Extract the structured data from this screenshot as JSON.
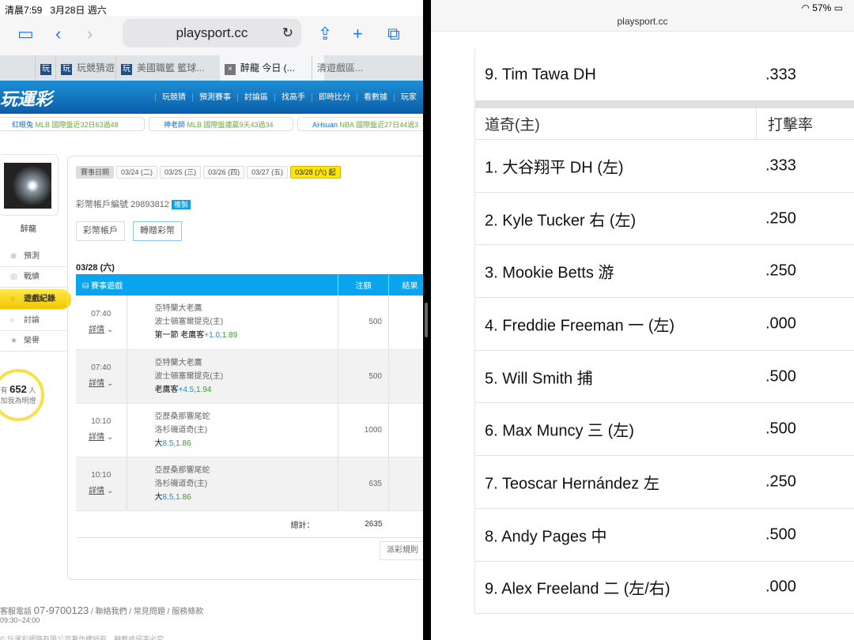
{
  "status_left": {
    "time": "清晨7:59",
    "date": "3月28日 週六"
  },
  "status_right": {
    "battery": "57%"
  },
  "browser": {
    "url": "playsport.cc",
    "tabs": [
      "玩競猜遊",
      "美國職籃 籃球...",
      "醉龍 今日 (...",
      "清遊戲區..."
    ]
  },
  "site": {
    "logo": "玩運彩",
    "nav": [
      "玩競猜",
      "預測賽事",
      "討論區",
      "找高手",
      "即時比分",
      "看數據",
      "玩家"
    ],
    "ticker": [
      {
        "user": "紅眼兔",
        "text": "MLB 國際盤近32日63過48"
      },
      {
        "user": "神老師",
        "text": "MLB 國際盤連贏9天43過34"
      },
      {
        "user": "AHsuan",
        "text": "NBA 國際盤近27日44過3"
      }
    ]
  },
  "sidebar": {
    "username": "醉龍",
    "menu": [
      "預測",
      "戰績",
      "遊戲紀錄",
      "討論",
      "榮譽"
    ],
    "fans_prefix": "有",
    "fans_count": "652",
    "fans_suffix": "人",
    "fans_caption": "加我為明燈"
  },
  "main": {
    "date_label": "賽事日期",
    "dates": [
      "03/24 (二)",
      "03/25 (三)",
      "03/26 (四)",
      "03/27 (五)",
      "03/28 (六) 起"
    ],
    "account_label": "彩幣帳戶編號 29893812",
    "copy": "複製",
    "btn_account": "彩幣帳戶",
    "btn_transfer": "轉贈彩幣",
    "day_title": "03/28 (六)",
    "columns": [
      "賽事遊戲",
      "注額",
      "結果"
    ],
    "detail": "詳情",
    "rows": [
      {
        "time": "07:40",
        "away": "亞特蘭大老鷹",
        "home": "波士頓塞爾提克(主)",
        "pick": "第一節 老鷹客",
        "line": "+1.0",
        "odds": ",1.89",
        "amount": "500"
      },
      {
        "time": "07:40",
        "away": "亞特蘭大老鷹",
        "home": "波士頓塞爾提克(主)",
        "pick": "老鷹客",
        "line": "+4.5",
        "odds": ",1.94",
        "amount": "500"
      },
      {
        "time": "10:10",
        "away": "亞歷桑那響尾蛇",
        "home": "洛杉磯道奇(主)",
        "pick": "大",
        "line": "8.5",
        "odds": ",1.86",
        "amount": "1000"
      },
      {
        "time": "10:10",
        "away": "亞歷桑那響尾蛇",
        "home": "洛杉磯道奇(主)",
        "pick": "大",
        "line": "8.5",
        "odds": ",1.86",
        "amount": "635"
      }
    ],
    "total_label": "總計：",
    "total": "2635",
    "rules": "派彩規則"
  },
  "footer": {
    "phone_label": "客服電話",
    "hours": "09:30~24:00",
    "phone": "07-9700123",
    "links": [
      "聯絡我們",
      "常見問題",
      "服務條款"
    ],
    "copyright": "© 玩運彩網路有限公司著作權所有，轉載或侵害必究。"
  },
  "right": {
    "url": "playsport.cc",
    "prev_row": {
      "name": "9. Tim Tawa DH",
      "avg": ".333"
    },
    "team_header": "道奇(主)",
    "avg_header": "打擊率",
    "lineup": [
      {
        "name": "1. 大谷翔平 DH (左)",
        "avg": ".333"
      },
      {
        "name": "2. Kyle Tucker 右 (左)",
        "avg": ".250"
      },
      {
        "name": "3. Mookie Betts 游",
        "avg": ".250"
      },
      {
        "name": "4. Freddie Freeman 一 (左)",
        "avg": ".000"
      },
      {
        "name": "5. Will Smith 捕",
        "avg": ".500"
      },
      {
        "name": "6. Max Muncy 三 (左)",
        "avg": ".500"
      },
      {
        "name": "7. Teoscar Hernández 左",
        "avg": ".250"
      },
      {
        "name": "8. Andy Pages 中",
        "avg": ".500"
      },
      {
        "name": "9. Alex Freeland 二 (左/右)",
        "avg": ".000"
      }
    ]
  }
}
